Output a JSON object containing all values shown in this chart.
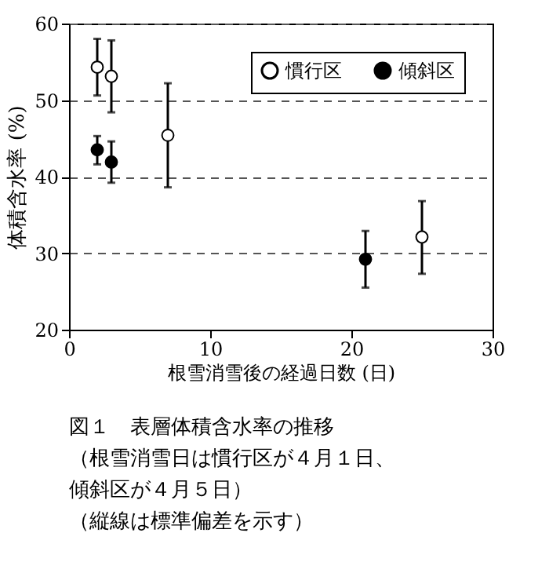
{
  "chart_data": {
    "type": "scatter",
    "xlabel": "根雪消雪後の経過日数 (日)",
    "ylabel": "体積含水率 (%)",
    "series": [
      {
        "name": "慣行区",
        "color": "#ffffff",
        "x": [
          2,
          3,
          7,
          25
        ],
        "values": [
          54.3,
          53.1,
          45.4,
          32.1
        ],
        "errors": [
          [
            50.6,
            58.0
          ],
          [
            48.4,
            57.8
          ],
          [
            38.6,
            52.2
          ],
          [
            27.3,
            36.8
          ]
        ]
      },
      {
        "name": "傾斜区",
        "color": "#000000",
        "x": [
          2,
          3,
          21
        ],
        "values": [
          43.5,
          41.9,
          29.2
        ],
        "errors": [
          [
            41.6,
            45.3
          ],
          [
            39.2,
            44.6
          ],
          [
            25.5,
            32.9
          ]
        ]
      }
    ],
    "xlim": [
      0,
      30
    ],
    "xticks": [
      0,
      10,
      20,
      30
    ],
    "ylim": [
      20,
      60
    ],
    "yticks": [
      20,
      30,
      40,
      50,
      60
    ],
    "grid": "y",
    "line_style": "dashed",
    "legend": "top right",
    "marker": "circle",
    "annotations": [
      "図１　表層体積含水率の推移",
      "（根雪消雪日は慣行区が４月１日、",
      "　傾斜区が４月５日）",
      "（縦線は標準偏差を示す）"
    ]
  }
}
